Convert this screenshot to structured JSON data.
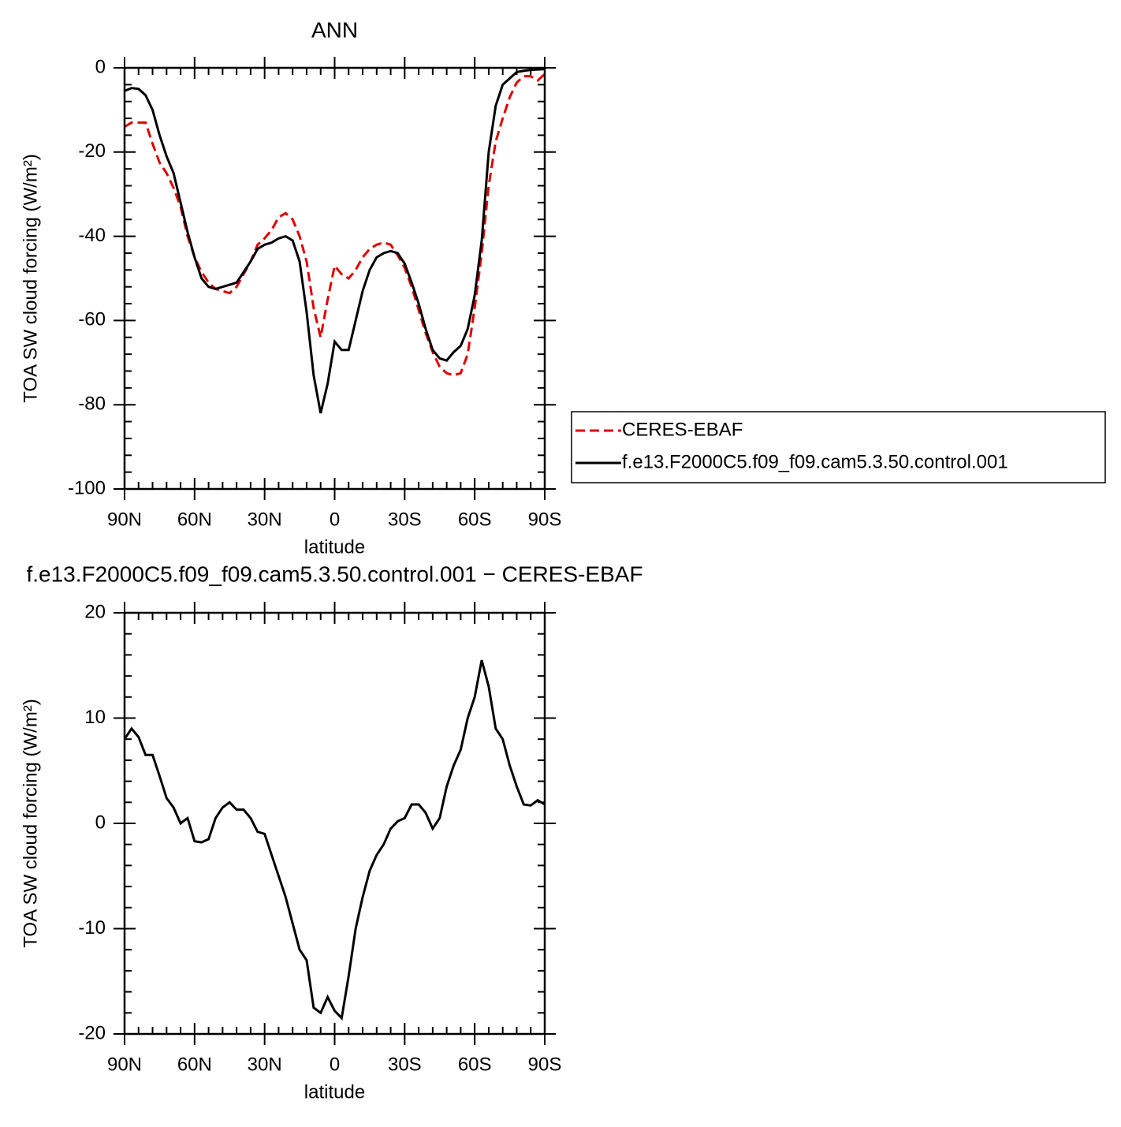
{
  "chart_data": [
    {
      "type": "line",
      "title": "ANN",
      "xlabel": "latitude",
      "ylabel": "TOA SW cloud forcing (W/m²)",
      "x": [
        90,
        87,
        84,
        81,
        78,
        75,
        72,
        69,
        66,
        63,
        60,
        57,
        54,
        51,
        48,
        45,
        42,
        39,
        36,
        33,
        30,
        27,
        24,
        21,
        18,
        15,
        12,
        9,
        6,
        3,
        0,
        -3,
        -6,
        -9,
        -12,
        -15,
        -18,
        -21,
        -24,
        -27,
        -30,
        -33,
        -36,
        -39,
        -42,
        -45,
        -48,
        -51,
        -54,
        -57,
        -60,
        -63,
        -66,
        -69,
        -72,
        -75,
        -78,
        -81,
        -84,
        -87,
        -90
      ],
      "xlim": [
        90,
        -90
      ],
      "xticks": [
        {
          "value": 90,
          "label": "90N"
        },
        {
          "value": 60,
          "label": "60N"
        },
        {
          "value": 30,
          "label": "30N"
        },
        0,
        {
          "value": -30,
          "label": "30S"
        },
        {
          "value": -60,
          "label": "60S"
        },
        {
          "value": -90,
          "label": "90S"
        }
      ],
      "xminorticks": [
        84,
        78,
        72,
        66,
        54,
        48,
        42,
        36,
        24,
        18,
        12,
        6,
        -6,
        -12,
        -18,
        -24,
        -36,
        -42,
        -48,
        -54,
        -66,
        -72,
        -78,
        -84
      ],
      "ylim": [
        -100,
        0
      ],
      "yticks": [
        -100,
        -80,
        -60,
        -40,
        -20,
        0
      ],
      "yminorticks": [
        -96,
        -92,
        -88,
        -84,
        -76,
        -72,
        -68,
        -64,
        -56,
        -52,
        -48,
        -44,
        -36,
        -32,
        -28,
        -24,
        -16,
        -12,
        -8,
        -4
      ],
      "legend": "right",
      "series": [
        {
          "name": "CERES-EBAF",
          "color": "#e00000",
          "line_style": "dashed",
          "values": [
            -14,
            -13,
            -13,
            -13,
            -18,
            -22.5,
            -25,
            -28.5,
            -33,
            -40,
            -45,
            -48.5,
            -51,
            -52.5,
            -53,
            -53.5,
            -52,
            -49,
            -46,
            -42,
            -40.5,
            -38.5,
            -35.5,
            -34.5,
            -36,
            -40,
            -46,
            -57,
            -64,
            -55,
            -47,
            -49,
            -50,
            -48,
            -45,
            -43,
            -42,
            -41.5,
            -42,
            -44.5,
            -47.5,
            -52,
            -57.5,
            -63,
            -67.5,
            -71,
            -72.5,
            -73,
            -72.5,
            -68,
            -57,
            -44,
            -28,
            -17.5,
            -12,
            -7,
            -3.5,
            -2,
            -2,
            -3,
            -1.5
          ]
        },
        {
          "name": "f.e13.F2000C5.f09_f09.cam5.3.50.control.001",
          "color": "#000000",
          "line_style": "solid",
          "values": [
            -5.5,
            -4.8,
            -5,
            -6.5,
            -10,
            -16,
            -21,
            -25,
            -32,
            -39,
            -45,
            -50,
            -52,
            -52.5,
            -52,
            -51.5,
            -51,
            -48.5,
            -46,
            -43,
            -42,
            -41.5,
            -40.5,
            -40,
            -41,
            -46,
            -58,
            -73,
            -82,
            -75,
            -65,
            -67,
            -67,
            -60,
            -53,
            -48,
            -45,
            -44,
            -43.5,
            -44,
            -46.5,
            -51,
            -56,
            -62,
            -67,
            -69,
            -69.5,
            -67.5,
            -66,
            -62,
            -54,
            -41,
            -20,
            -9,
            -4,
            -2.5,
            -1,
            -0.7,
            -0.5,
            -0.4,
            -0.3
          ]
        }
      ]
    },
    {
      "type": "line",
      "title": "f.e13.F2000C5.f09_f09.cam5.3.50.control.001 − CERES-EBAF",
      "xlabel": "latitude",
      "ylabel": "TOA SW cloud forcing (W/m²)",
      "x": [
        90,
        87,
        84,
        81,
        78,
        75,
        72,
        69,
        66,
        63,
        60,
        57,
        54,
        51,
        48,
        45,
        42,
        39,
        36,
        33,
        30,
        27,
        24,
        21,
        18,
        15,
        12,
        9,
        6,
        3,
        0,
        -3,
        -6,
        -9,
        -12,
        -15,
        -18,
        -21,
        -24,
        -27,
        -30,
        -33,
        -36,
        -39,
        -42,
        -45,
        -48,
        -51,
        -54,
        -57,
        -60,
        -63,
        -66,
        -69,
        -72,
        -75,
        -78,
        -81,
        -84,
        -87,
        -90
      ],
      "xlim": [
        90,
        -90
      ],
      "xticks": [
        {
          "value": 90,
          "label": "90N"
        },
        {
          "value": 60,
          "label": "60N"
        },
        {
          "value": 30,
          "label": "30N"
        },
        0,
        {
          "value": -30,
          "label": "30S"
        },
        {
          "value": -60,
          "label": "60S"
        },
        {
          "value": -90,
          "label": "90S"
        }
      ],
      "xminorticks": [
        84,
        78,
        72,
        66,
        54,
        48,
        42,
        36,
        24,
        18,
        12,
        6,
        -6,
        -12,
        -18,
        -24,
        -36,
        -42,
        -48,
        -54,
        -66,
        -72,
        -78,
        -84
      ],
      "ylim": [
        -20,
        20
      ],
      "yticks": [
        -20,
        -10,
        0,
        10,
        20
      ],
      "yminorticks": [
        -18,
        -16,
        -14,
        -12,
        -8,
        -6,
        -4,
        -2,
        2,
        4,
        6,
        8,
        12,
        14,
        16,
        18
      ],
      "series": [
        {
          "color": "#000000",
          "line_style": "solid",
          "values": [
            8,
            9,
            8.2,
            6.5,
            6.5,
            4.5,
            2.4,
            1.5,
            0,
            0.5,
            -1.7,
            -1.8,
            -1.5,
            0.5,
            1.5,
            2,
            1.3,
            1.3,
            0.5,
            -0.8,
            -1,
            -3,
            -5,
            -7,
            -9.5,
            -12,
            -13,
            -17.5,
            -18,
            -16.5,
            -17.8,
            -18.5,
            -14.5,
            -10,
            -7,
            -4.5,
            -3,
            -2,
            -0.5,
            0.2,
            0.5,
            1.8,
            1.8,
            1,
            -0.5,
            0.5,
            3.5,
            5.5,
            7,
            10,
            12,
            15.5,
            13,
            9,
            8,
            5.5,
            3.5,
            1.8,
            1.7,
            2.2,
            1.8
          ]
        }
      ]
    }
  ]
}
